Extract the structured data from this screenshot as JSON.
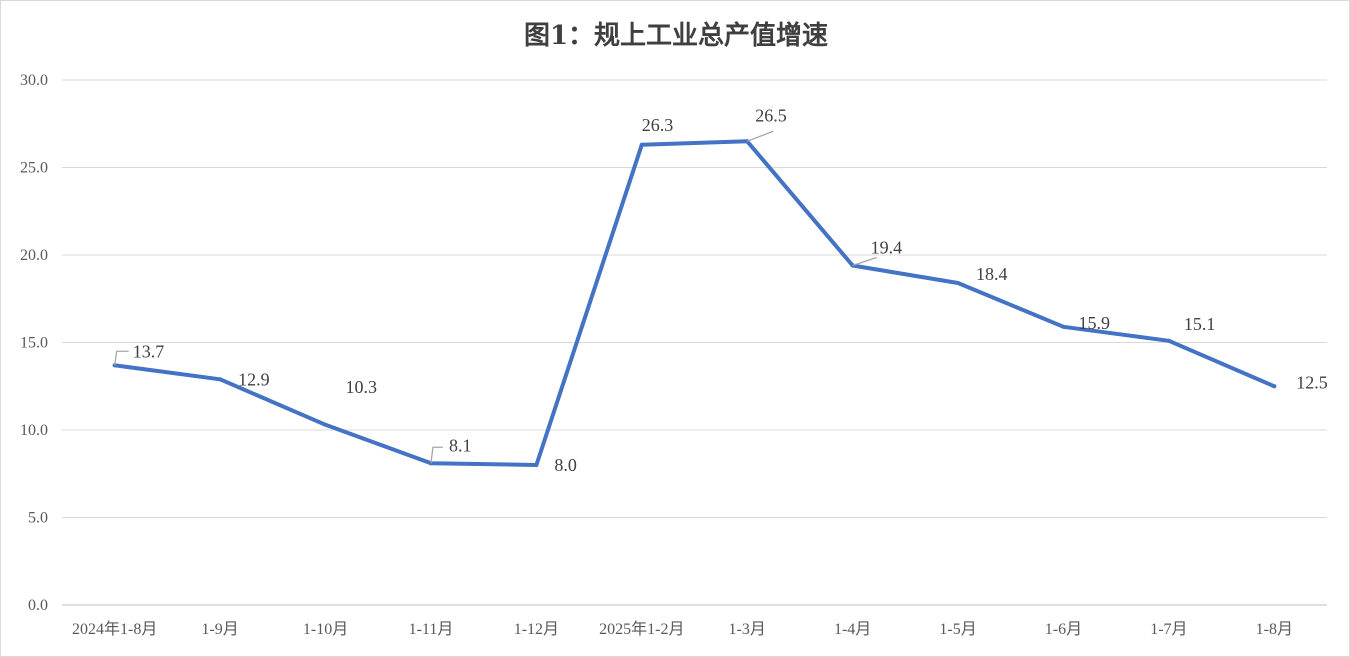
{
  "chart_data": {
    "type": "line",
    "title": "图1：规上工业总产值增速",
    "categories": [
      "2024年1-8月",
      "1-9月",
      "1-10月",
      "1-11月",
      "1-12月",
      "2025年1-2月",
      "1-3月",
      "1-4月",
      "1-5月",
      "1-6月",
      "1-7月",
      "1-8月"
    ],
    "series": [
      {
        "values": [
          13.7,
          12.9,
          10.3,
          8.1,
          8.0,
          26.3,
          26.5,
          19.4,
          18.4,
          15.9,
          15.1,
          12.5
        ]
      }
    ],
    "ylim": [
      0,
      30
    ],
    "yticks": [
      "0.0",
      "5.0",
      "10.0",
      "15.0",
      "20.0",
      "25.0",
      "30.0"
    ],
    "data_labels": [
      "13.7",
      "12.9",
      "10.3",
      "8.1",
      "8.0",
      "26.3",
      "26.5",
      "19.4",
      "18.4",
      "15.9",
      "15.1",
      "12.5"
    ],
    "grid": true,
    "legend": "none",
    "line_color": "#4472c4",
    "leader_color": "#a6a6a6"
  }
}
